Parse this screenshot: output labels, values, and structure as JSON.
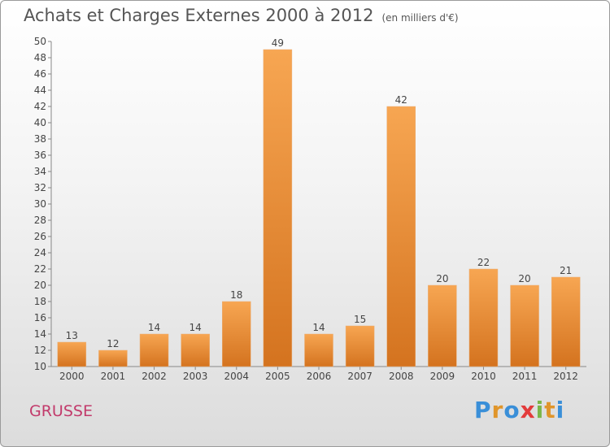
{
  "title": "Achats et Charges Externes 2000 à 2012",
  "unit_label": "(en milliers d'€)",
  "commune": "GRUSSE",
  "logo": {
    "text": "Proxiti",
    "parts": [
      "P",
      "r",
      "o",
      "x",
      "i",
      "t",
      "i"
    ]
  },
  "colors": {
    "bar_light": "#f7a652",
    "bar_dark": "#d4731f",
    "commune": "#c23a6b",
    "text": "#555555"
  },
  "chart_data": {
    "type": "bar",
    "categories": [
      "2000",
      "2001",
      "2002",
      "2003",
      "2004",
      "2005",
      "2006",
      "2007",
      "2008",
      "2009",
      "2010",
      "2011",
      "2012"
    ],
    "values": [
      13,
      12,
      14,
      14,
      18,
      49,
      14,
      15,
      42,
      20,
      22,
      20,
      21
    ],
    "ylim": [
      10,
      50
    ],
    "yticks": [
      10,
      12,
      14,
      16,
      18,
      20,
      22,
      24,
      26,
      28,
      30,
      32,
      34,
      36,
      38,
      40,
      42,
      44,
      46,
      48,
      50
    ],
    "grid": false,
    "data_labels": true
  }
}
